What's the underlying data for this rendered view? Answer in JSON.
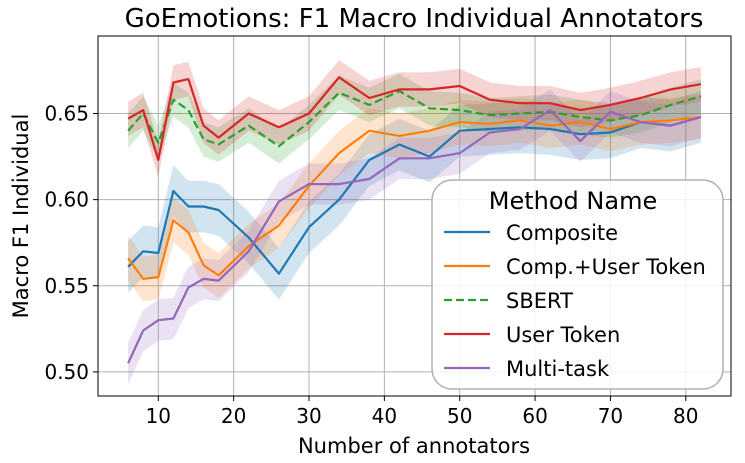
{
  "chart_data": {
    "type": "line",
    "title": "GoEmotions: F1 Macro Individual Annotators",
    "xlabel": "Number of annotators",
    "ylabel": "Macro F1 Individual",
    "xlim": [
      2,
      86
    ],
    "ylim": [
      0.486,
      0.695
    ],
    "xticks": [
      10,
      20,
      30,
      40,
      50,
      60,
      70,
      80
    ],
    "yticks": [
      0.5,
      0.55,
      0.6,
      0.65
    ],
    "ytick_labels": [
      "0.50",
      "0.55",
      "0.60",
      "0.65"
    ],
    "grid": true,
    "legend": {
      "title": "Method Name",
      "position": "center-right"
    },
    "x": [
      6,
      8,
      10,
      12,
      14,
      16,
      18,
      22,
      26,
      30,
      34,
      38,
      42,
      46,
      50,
      54,
      58,
      62,
      66,
      70,
      74,
      78,
      82
    ],
    "series": [
      {
        "name": "Composite",
        "color": "#1f77b4",
        "dashed": false,
        "values": [
          0.561,
          0.57,
          0.569,
          0.605,
          0.596,
          0.596,
          0.594,
          0.578,
          0.557,
          0.584,
          0.6,
          0.623,
          0.632,
          0.625,
          0.64,
          0.641,
          0.642,
          0.641,
          0.638,
          0.639,
          0.645,
          0.643,
          0.648
        ],
        "band": 0.015
      },
      {
        "name": "Comp.+User Token",
        "color": "#ff7f0e",
        "dashed": false,
        "values": [
          0.566,
          0.554,
          0.555,
          0.588,
          0.581,
          0.562,
          0.556,
          0.573,
          0.585,
          0.608,
          0.627,
          0.64,
          0.637,
          0.64,
          0.645,
          0.644,
          0.646,
          0.643,
          0.645,
          0.641,
          0.645,
          0.646,
          0.648
        ],
        "band": 0.013
      },
      {
        "name": "SBERT",
        "color": "#2ca02c",
        "dashed": true,
        "values": [
          0.64,
          0.65,
          0.633,
          0.658,
          0.652,
          0.635,
          0.632,
          0.643,
          0.631,
          0.645,
          0.662,
          0.655,
          0.663,
          0.653,
          0.652,
          0.649,
          0.65,
          0.651,
          0.648,
          0.646,
          0.649,
          0.655,
          0.66
        ],
        "band": 0.01
      },
      {
        "name": "User Token",
        "color": "#d62728",
        "dashed": false,
        "values": [
          0.647,
          0.652,
          0.623,
          0.668,
          0.67,
          0.643,
          0.636,
          0.65,
          0.642,
          0.65,
          0.671,
          0.659,
          0.664,
          0.664,
          0.666,
          0.658,
          0.656,
          0.656,
          0.652,
          0.655,
          0.659,
          0.664,
          0.667
        ],
        "band": 0.01
      },
      {
        "name": "Multi-task",
        "color": "#9467bd",
        "dashed": false,
        "values": [
          0.505,
          0.524,
          0.53,
          0.531,
          0.549,
          0.554,
          0.553,
          0.57,
          0.599,
          0.609,
          0.609,
          0.612,
          0.624,
          0.624,
          0.627,
          0.639,
          0.641,
          0.652,
          0.634,
          0.651,
          0.645,
          0.643,
          0.648
        ],
        "band": 0.012
      }
    ]
  }
}
